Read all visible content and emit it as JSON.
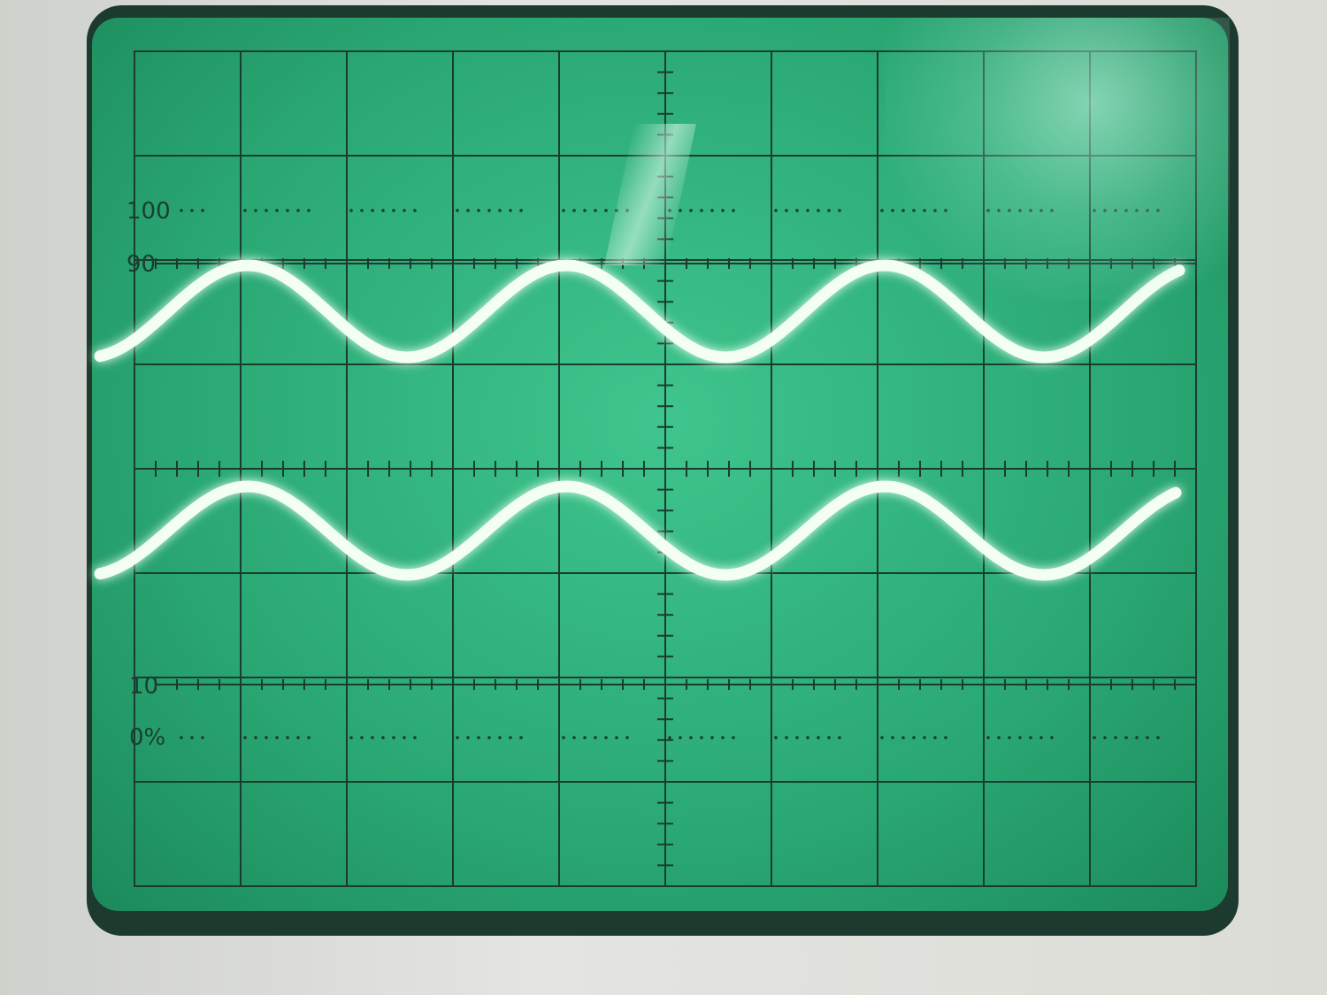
{
  "labels": {
    "label_100": "100",
    "label_90": "90",
    "label_10": "10",
    "label_0": "0%"
  },
  "colors": {
    "screen": "#2aa874",
    "graticule": "#1a3c30",
    "trace": "#f4fff4",
    "bezel": "#d6d8d4"
  },
  "traces": [
    {
      "name": "upper",
      "divisions_per_cycle": 3.0
    },
    {
      "name": "lower",
      "divisions_per_cycle": 3.0
    }
  ],
  "graticule": {
    "divisions_x": 10,
    "divisions_y": 8,
    "minor_ticks_per_division": 5
  }
}
